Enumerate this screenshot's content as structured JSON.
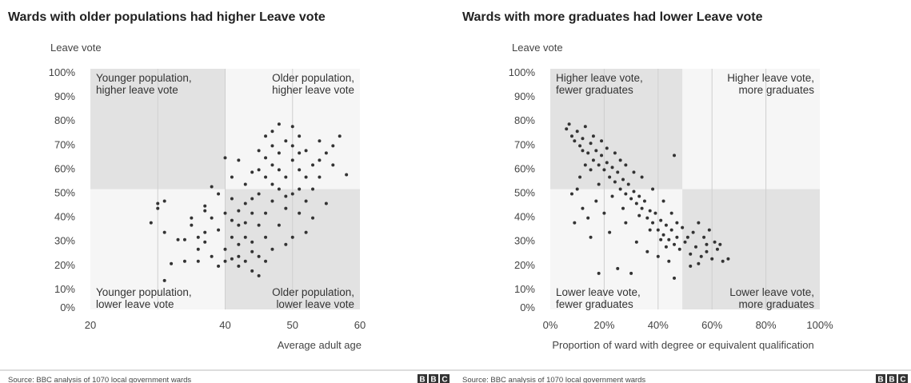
{
  "chart_data": [
    {
      "type": "scatter",
      "title": "Wards with older populations had higher Leave vote",
      "ylabel": "Leave vote",
      "xlabel": "Average adult age",
      "xlim": [
        20,
        60
      ],
      "ylim": [
        0,
        100
      ],
      "x_ticks": [
        "20",
        "40",
        "50",
        "60"
      ],
      "x_tick_values": [
        20,
        40,
        50,
        60
      ],
      "y_ticks": [
        "0%",
        "10%",
        "20%",
        "30%",
        "40%",
        "50%",
        "60%",
        "70%",
        "80%",
        "90%",
        "100%"
      ],
      "y_tick_values": [
        0,
        10,
        20,
        30,
        40,
        50,
        60,
        70,
        80,
        90,
        100
      ],
      "grid_x": [
        30,
        40,
        50
      ],
      "shade_split": {
        "x": 40,
        "y": 50
      },
      "quadrants": {
        "top_left": [
          "Younger population,",
          "higher leave vote"
        ],
        "top_right": [
          "Older population,",
          "higher leave vote"
        ],
        "bottom_left": [
          "Younger population,",
          "lower leave vote"
        ],
        "bottom_right": [
          "Older population,",
          "lower leave vote"
        ]
      },
      "points": [
        [
          29,
          36
        ],
        [
          30,
          42
        ],
        [
          30,
          44
        ],
        [
          31,
          45
        ],
        [
          31,
          32
        ],
        [
          32,
          19
        ],
        [
          31,
          12
        ],
        [
          33,
          29
        ],
        [
          34,
          29
        ],
        [
          34,
          20
        ],
        [
          35,
          35
        ],
        [
          35,
          38
        ],
        [
          36,
          30
        ],
        [
          36,
          20
        ],
        [
          37,
          43
        ],
        [
          37,
          41
        ],
        [
          37,
          28
        ],
        [
          38,
          22
        ],
        [
          38,
          38
        ],
        [
          39,
          48
        ],
        [
          39,
          18
        ],
        [
          39,
          33
        ],
        [
          38,
          51
        ],
        [
          37,
          32
        ],
        [
          36,
          25
        ],
        [
          40,
          25
        ],
        [
          40,
          40
        ],
        [
          41,
          21
        ],
        [
          41,
          30
        ],
        [
          41,
          46
        ],
        [
          40,
          63
        ],
        [
          41,
          55
        ],
        [
          42,
          18
        ],
        [
          42,
          22
        ],
        [
          42,
          35
        ],
        [
          42,
          62
        ],
        [
          43,
          20
        ],
        [
          43,
          30
        ],
        [
          43,
          44
        ],
        [
          43,
          52
        ],
        [
          44,
          16
        ],
        [
          44,
          28
        ],
        [
          44,
          40
        ],
        [
          44,
          57
        ],
        [
          45,
          22
        ],
        [
          45,
          35
        ],
        [
          45,
          48
        ],
        [
          45,
          66
        ],
        [
          46,
          30
        ],
        [
          46,
          40
        ],
        [
          46,
          55
        ],
        [
          46,
          72
        ],
        [
          47,
          25
        ],
        [
          47,
          45
        ],
        [
          47,
          60
        ],
        [
          47,
          74
        ],
        [
          48,
          35
        ],
        [
          48,
          50
        ],
        [
          48,
          65
        ],
        [
          48,
          77
        ],
        [
          49,
          42
        ],
        [
          49,
          55
        ],
        [
          49,
          70
        ],
        [
          50,
          30
        ],
        [
          50,
          48
        ],
        [
          50,
          62
        ],
        [
          50,
          76
        ],
        [
          51,
          40
        ],
        [
          51,
          58
        ],
        [
          51,
          72
        ],
        [
          52,
          45
        ],
        [
          52,
          66
        ],
        [
          53,
          50
        ],
        [
          53,
          60
        ],
        [
          54,
          55
        ],
        [
          54,
          70
        ],
        [
          55,
          65
        ],
        [
          56,
          68
        ],
        [
          57,
          72
        ],
        [
          58,
          56
        ],
        [
          52,
          32
        ],
        [
          49,
          27
        ],
        [
          46,
          20
        ],
        [
          45,
          14
        ],
        [
          56,
          60
        ],
        [
          55,
          44
        ],
        [
          53,
          38
        ],
        [
          51,
          50
        ],
        [
          47,
          52
        ],
        [
          44,
          46
        ],
        [
          42,
          41
        ],
        [
          48,
          58
        ],
        [
          50,
          68
        ],
        [
          46,
          63
        ],
        [
          49,
          47
        ],
        [
          52,
          55
        ],
        [
          54,
          62
        ],
        [
          47,
          68
        ],
        [
          45,
          58
        ],
        [
          51,
          65
        ],
        [
          43,
          36
        ],
        [
          42,
          27
        ],
        [
          40,
          20
        ],
        [
          41,
          37
        ],
        [
          44,
          24
        ]
      ],
      "source": "Source: BBC analysis of 1070 local government wards"
    },
    {
      "type": "scatter",
      "title": "Wards with more graduates had lower Leave vote",
      "ylabel": "Leave vote",
      "xlabel": "Proportion of ward with degree or equivalent qualification",
      "xlim": [
        0,
        100
      ],
      "ylim": [
        0,
        100
      ],
      "x_ticks": [
        "0%",
        "20%",
        "40%",
        "60%",
        "80%",
        "100%"
      ],
      "x_tick_values": [
        0,
        20,
        40,
        60,
        80,
        100
      ],
      "y_ticks": [
        "0%",
        "10%",
        "20%",
        "30%",
        "40%",
        "50%",
        "60%",
        "70%",
        "80%",
        "90%",
        "100%"
      ],
      "y_tick_values": [
        0,
        10,
        20,
        30,
        40,
        50,
        60,
        70,
        80,
        90,
        100
      ],
      "grid_x": [
        20,
        40,
        60,
        80
      ],
      "shade_split": {
        "x": 49,
        "y": 50
      },
      "quadrants": {
        "top_left": [
          "Higher leave vote,",
          "fewer graduates"
        ],
        "top_right": [
          "Higher leave vote,",
          "more graduates"
        ],
        "bottom_left": [
          "Lower leave vote,",
          "fewer graduates"
        ],
        "bottom_right": [
          "Lower leave vote,",
          "more graduates"
        ]
      },
      "points": [
        [
          6,
          75
        ],
        [
          7,
          77
        ],
        [
          8,
          72
        ],
        [
          9,
          70
        ],
        [
          10,
          74
        ],
        [
          11,
          68
        ],
        [
          12,
          71
        ],
        [
          13,
          76
        ],
        [
          14,
          65
        ],
        [
          15,
          69
        ],
        [
          16,
          62
        ],
        [
          17,
          66
        ],
        [
          18,
          60
        ],
        [
          19,
          64
        ],
        [
          20,
          58
        ],
        [
          21,
          61
        ],
        [
          22,
          55
        ],
        [
          23,
          59
        ],
        [
          24,
          53
        ],
        [
          25,
          57
        ],
        [
          26,
          50
        ],
        [
          27,
          54
        ],
        [
          28,
          48
        ],
        [
          29,
          52
        ],
        [
          30,
          46
        ],
        [
          31,
          49
        ],
        [
          32,
          44
        ],
        [
          33,
          47
        ],
        [
          34,
          42
        ],
        [
          35,
          45
        ],
        [
          36,
          38
        ],
        [
          37,
          41
        ],
        [
          38,
          36
        ],
        [
          39,
          40
        ],
        [
          40,
          33
        ],
        [
          41,
          37
        ],
        [
          42,
          31
        ],
        [
          43,
          35
        ],
        [
          44,
          29
        ],
        [
          45,
          33
        ],
        [
          46,
          27
        ],
        [
          47,
          30
        ],
        [
          48,
          25
        ],
        [
          50,
          28
        ],
        [
          52,
          23
        ],
        [
          54,
          26
        ],
        [
          56,
          22
        ],
        [
          58,
          24
        ],
        [
          60,
          21
        ],
        [
          62,
          25
        ],
        [
          64,
          20
        ],
        [
          66,
          21
        ],
        [
          59,
          33
        ],
        [
          55,
          36
        ],
        [
          51,
          30
        ],
        [
          46,
          13
        ],
        [
          30,
          15
        ],
        [
          25,
          17
        ],
        [
          18,
          15
        ],
        [
          15,
          30
        ],
        [
          12,
          42
        ],
        [
          10,
          50
        ],
        [
          14,
          38
        ],
        [
          20,
          40
        ],
        [
          22,
          32
        ],
        [
          28,
          36
        ],
        [
          32,
          28
        ],
        [
          36,
          24
        ],
        [
          40,
          22
        ],
        [
          44,
          20
        ],
        [
          8,
          48
        ],
        [
          9,
          36
        ],
        [
          11,
          55
        ],
        [
          13,
          60
        ],
        [
          16,
          72
        ],
        [
          19,
          70
        ],
        [
          21,
          67
        ],
        [
          24,
          65
        ],
        [
          26,
          62
        ],
        [
          28,
          60
        ],
        [
          31,
          57
        ],
        [
          34,
          55
        ],
        [
          38,
          50
        ],
        [
          42,
          45
        ],
        [
          45,
          40
        ],
        [
          47,
          36
        ],
        [
          49,
          34
        ],
        [
          53,
          32
        ],
        [
          57,
          30
        ],
        [
          61,
          28
        ],
        [
          63,
          27
        ],
        [
          17,
          45
        ],
        [
          23,
          47
        ],
        [
          27,
          42
        ],
        [
          33,
          39
        ],
        [
          37,
          33
        ],
        [
          41,
          29
        ],
        [
          43,
          26
        ],
        [
          12,
          66
        ],
        [
          15,
          58
        ],
        [
          18,
          52
        ],
        [
          46,
          64
        ],
        [
          52,
          18
        ],
        [
          55,
          19
        ],
        [
          58,
          27
        ]
      ],
      "source": "Source: BBC analysis of 1070 local government wards"
    }
  ],
  "logo": {
    "letters": [
      "B",
      "B",
      "C"
    ]
  }
}
